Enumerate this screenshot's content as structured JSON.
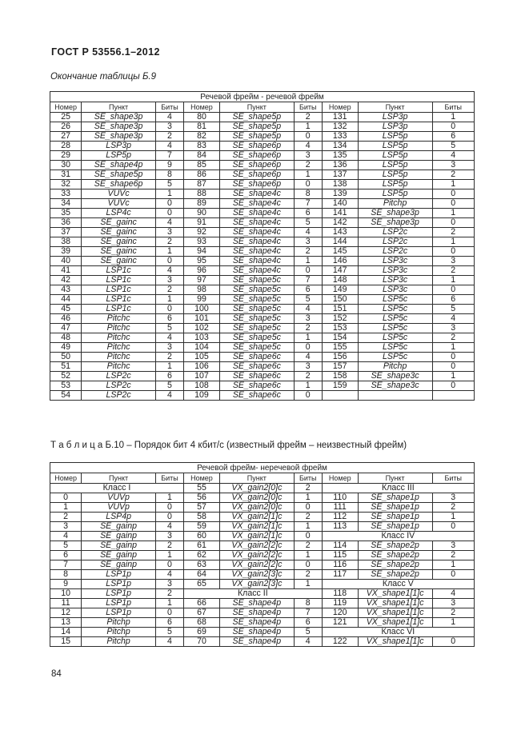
{
  "page": {
    "header": "ГОСТ Р 53556.1–2012",
    "page_number": "84"
  },
  "table_b9": {
    "continuation_note": "Окончание таблицы Б.9",
    "group_header": "Речевой фрейм  - речевой фрейм",
    "column_headers": [
      "Номер",
      "Пункт",
      "Биты",
      "Номер",
      "Пункт",
      "Биты",
      "Номер",
      "Пункт",
      "Биты"
    ],
    "rows": [
      [
        "25",
        "SE_shape3p",
        "4",
        "80",
        "SE_shape5p",
        "2",
        "131",
        "LSP3p",
        "1"
      ],
      [
        "26",
        "SE_shape3p",
        "3",
        "81",
        "SE_shape5p",
        "1",
        "132",
        "LSP3p",
        "0"
      ],
      [
        "27",
        "SE_shape3p",
        "2",
        "82",
        "SE_shape5p",
        "0",
        "133",
        "LSP5p",
        "6"
      ],
      [
        "28",
        "LSP3p",
        "4",
        "83",
        "SE_shape6p",
        "4",
        "134",
        "LSP5p",
        "5"
      ],
      [
        "29",
        "LSP5p",
        "7",
        "84",
        "SE_shape6p",
        "3",
        "135",
        "LSP5p",
        "4"
      ],
      [
        "30",
        "SE_shape4p",
        "9",
        "85",
        "SE_shape6p",
        "2",
        "136",
        "LSP5p",
        "3"
      ],
      [
        "31",
        "SE_shape5p",
        "8",
        "86",
        "SE_shape6p",
        "1",
        "137",
        "LSP5p",
        "2"
      ],
      [
        "32",
        "SE_shape6p",
        "5",
        "87",
        "SE_shape6p",
        "0",
        "138",
        "LSP5p",
        "1"
      ],
      [
        "33",
        "VUVc",
        "1",
        "88",
        "SE_shape4c",
        "8",
        "139",
        "LSP5p",
        "0"
      ],
      [
        "34",
        "VUVc",
        "0",
        "89",
        "SE_shape4c",
        "7",
        "140",
        "Pitchp",
        "0"
      ],
      [
        "35",
        "LSP4c",
        "0",
        "90",
        "SE_shape4c",
        "6",
        "141",
        "SE_shape3p",
        "1"
      ],
      [
        "36",
        "SE_gainc",
        "4",
        "91",
        "SE_shape4c",
        "5",
        "142",
        "SE_shape3p",
        "0"
      ],
      [
        "37",
        "SE_gainc",
        "3",
        "92",
        "SE_shape4c",
        "4",
        "143",
        "LSP2c",
        "2"
      ],
      [
        "38",
        "SE_gainc",
        "2",
        "93",
        "SE_shape4c",
        "3",
        "144",
        "LSP2c",
        "1"
      ],
      [
        "39",
        "SE_gainc",
        "1",
        "94",
        "SE_shape4c",
        "2",
        "145",
        "LSP2c",
        "0"
      ],
      [
        "40",
        "SE_gainc",
        "0",
        "95",
        "SE_shape4c",
        "1",
        "146",
        "LSP3c",
        "3"
      ],
      [
        "41",
        "LSP1c",
        "4",
        "96",
        "SE_shape4c",
        "0",
        "147",
        "LSP3c",
        "2"
      ],
      [
        "42",
        "LSP1c",
        "3",
        "97",
        "SE_shape5c",
        "7",
        "148",
        "LSP3c",
        "1"
      ],
      [
        "43",
        "LSP1c",
        "2",
        "98",
        "SE_shape5c",
        "6",
        "149",
        "LSP3c",
        "0"
      ],
      [
        "44",
        "LSP1c",
        "1",
        "99",
        "SE_shape5c",
        "5",
        "150",
        "LSP5c",
        "6"
      ],
      [
        "45",
        "LSP1c",
        "0",
        "100",
        "SE_shape5c",
        "4",
        "151",
        "LSP5c",
        "5"
      ],
      [
        "46",
        "Pitchc",
        "6",
        "101",
        "SE_shape5c",
        "3",
        "152",
        "LSP5c",
        "4"
      ],
      [
        "47",
        "Pitchc",
        "5",
        "102",
        "SE_shape5c",
        "2",
        "153",
        "LSP5c",
        "3"
      ],
      [
        "48",
        "Pitchc",
        "4",
        "103",
        "SE_shape5c",
        "1",
        "154",
        "LSP5c",
        "2"
      ],
      [
        "49",
        "Pitchc",
        "3",
        "104",
        "SE_shape5c",
        "0",
        "155",
        "LSP5c",
        "1"
      ],
      [
        "50",
        "Pitchc",
        "2",
        "105",
        "SE_shape6c",
        "4",
        "156",
        "LSP5c",
        "0"
      ],
      [
        "51",
        "Pitchc",
        "1",
        "106",
        "SE_shape6c",
        "3",
        "157",
        "Pitchp",
        "0"
      ],
      [
        "52",
        "LSP2c",
        "6",
        "107",
        "SE_shape6c",
        "2",
        "158",
        "SE_shape3c",
        "1"
      ],
      [
        "53",
        "LSP2c",
        "5",
        "108",
        "SE_shape6c",
        "1",
        "159",
        "SE_shape3c",
        "0"
      ],
      [
        "54",
        "LSP2c",
        "4",
        "109",
        "SE_shape6c",
        "0",
        "",
        "",
        ""
      ]
    ]
  },
  "table_b10": {
    "caption": "Т а б л и ц а  Б.10 – Порядок бит 4 кбит/с (известный фрейм – неизвестный фрейм)",
    "group_header": "Речевой фрейм-  неречевой фрейм",
    "column_headers": [
      "Номер",
      "Пункт",
      "Биты",
      "Номер",
      "Пункт",
      "Биты",
      "Номер",
      "Пункт",
      "Биты"
    ],
    "rows": [
      [
        {
          "text": "Класс I",
          "span": 3,
          "class_label": true
        },
        "55",
        "VX_gain2[0]c",
        "2",
        {
          "text": "Класс III",
          "span": 3,
          "class_label": true
        }
      ],
      [
        "0",
        "VUVp",
        "1",
        "56",
        "VX_gain2[0]c",
        "1",
        "110",
        "SE_shape1p",
        "3"
      ],
      [
        "1",
        "VUVp",
        "0",
        "57",
        "VX_gain2[0]c",
        "0",
        "111",
        "SE_shape1p",
        "2"
      ],
      [
        "2",
        "LSP4p",
        "0",
        "58",
        "VX_gain2[1]c",
        "2",
        "112",
        "SE_shape1p",
        "1"
      ],
      [
        "3",
        "SE_gainp",
        "4",
        "59",
        "VX_gain2[1]c",
        "1",
        "113",
        "SE_shape1p",
        "0"
      ],
      [
        "4",
        "SE_gainp",
        "3",
        "60",
        "VX_gain2[1]c",
        "0",
        {
          "text": "Класс IV",
          "span": 3,
          "class_label": true
        }
      ],
      [
        "5",
        "SE_gainp",
        "2",
        "61",
        "VX_gain2[2]c",
        "2",
        "114",
        "SE_shape2p",
        "3"
      ],
      [
        "6",
        "SE_gainp",
        "1",
        "62",
        "VX_gain2[2]c",
        "1",
        "115",
        "SE_shape2p",
        "2"
      ],
      [
        "7",
        "SE_gainp",
        "0",
        "63",
        "VX_gain2[2]c",
        "0",
        "116",
        "SE_shape2p",
        "1"
      ],
      [
        "8",
        "LSP1p",
        "4",
        "64",
        "VX_gain2[3]c",
        "2",
        "117",
        "SE_shape2p",
        "0"
      ],
      [
        "9",
        "LSP1p",
        "3",
        "65",
        "VX_gain2[3]c",
        "1",
        {
          "text": "Класс V",
          "span": 3,
          "class_label": true
        }
      ],
      [
        "10",
        "LSP1p",
        "2",
        {
          "text": "Класс II",
          "span": 3,
          "class_label": true
        },
        "118",
        "VX_shape1[1]c",
        "4"
      ],
      [
        "11",
        "LSP1p",
        "1",
        "66",
        "SE_shape4p",
        "8",
        "119",
        "VX_shape1[1]c",
        "3"
      ],
      [
        "12",
        "LSP1p",
        "0",
        "67",
        "SE_shape4p",
        "7",
        "120",
        "VX_shape1[1]c",
        "2"
      ],
      [
        "13",
        "Pitchp",
        "6",
        "68",
        "SE_shape4p",
        "6",
        "121",
        "VX_shape1[1]c",
        "1"
      ],
      [
        "14",
        "Pitchp",
        "5",
        "69",
        "SE_shape4p",
        "5",
        {
          "text": "Класс VI",
          "span": 3,
          "class_label": true
        }
      ],
      [
        "15",
        "Pitchp",
        "4",
        "70",
        "SE_shape4p",
        "4",
        "122",
        "VX_shape1[1]c",
        "0"
      ]
    ]
  }
}
